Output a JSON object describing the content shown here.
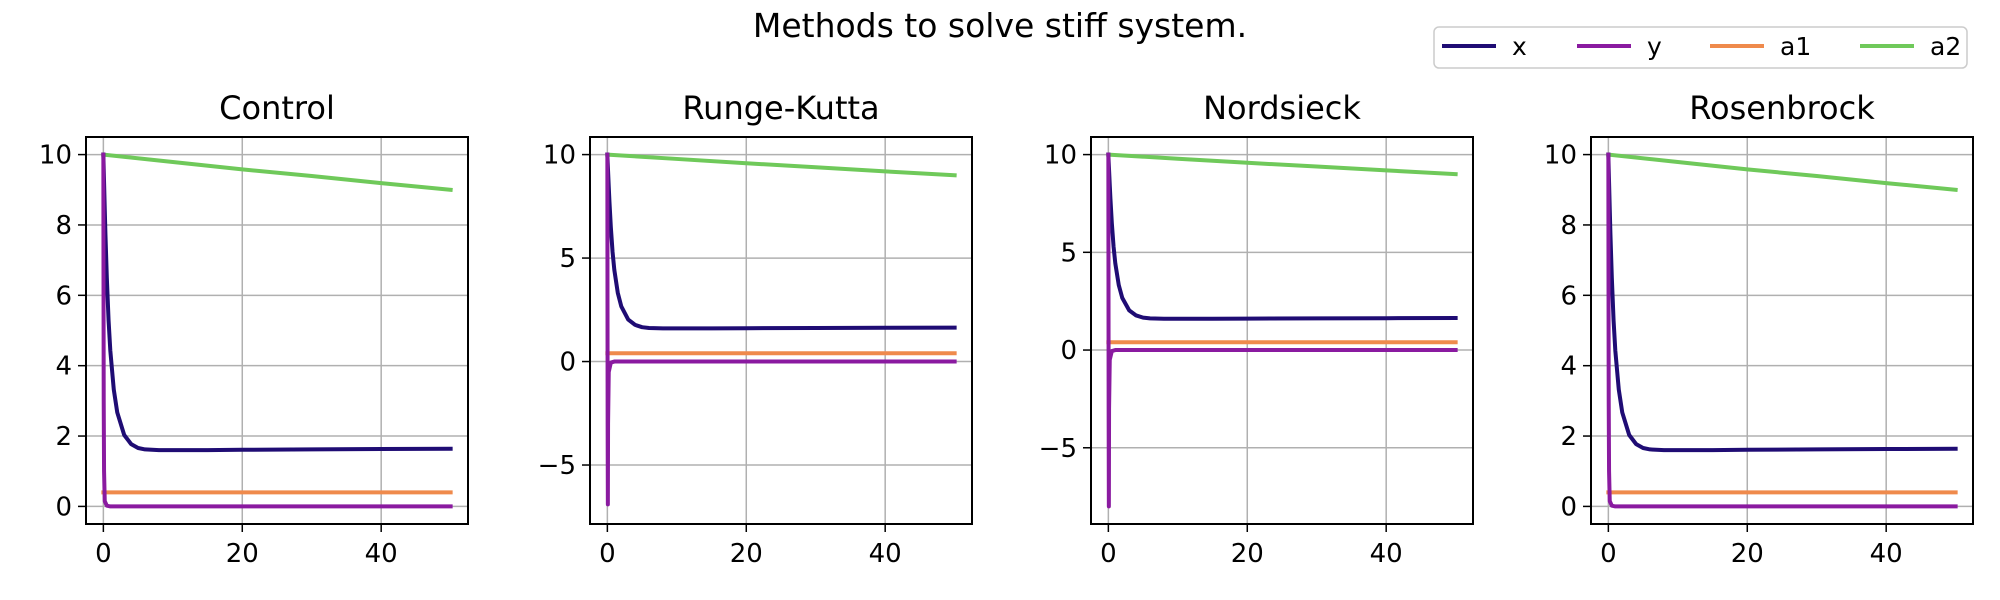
{
  "figure": {
    "title": "Methods to solve stiff system."
  },
  "legend": {
    "placement": "top-right",
    "entries": [
      {
        "label": "x",
        "color": "#1f0c74"
      },
      {
        "label": "y",
        "color": "#8a1aa0"
      },
      {
        "label": "a1",
        "color": "#ef8a4c"
      },
      {
        "label": "a2",
        "color": "#6fc95a"
      }
    ]
  },
  "chart_data": [
    {
      "type": "line",
      "title": "Control",
      "grid": true,
      "xlim": [
        -2.5,
        52.5
      ],
      "ylim": [
        -0.5,
        10.5
      ],
      "xticks": [
        0,
        20,
        40
      ],
      "yticks": [
        0,
        2,
        4,
        6,
        8,
        10
      ],
      "xtick_labels": [
        "0",
        "20",
        "40"
      ],
      "ytick_labels": [
        "0",
        "2",
        "4",
        "6",
        "8",
        "10"
      ],
      "series": [
        {
          "name": "a1",
          "color": "#ef8a4c",
          "x": [
            0,
            50
          ],
          "y": [
            0.4,
            0.4
          ]
        },
        {
          "name": "a2",
          "color": "#6fc95a",
          "x": [
            0,
            10,
            20,
            30,
            40,
            50
          ],
          "y": [
            10.0,
            9.79,
            9.58,
            9.39,
            9.19,
            9.0
          ]
        },
        {
          "name": "x",
          "color": "#1f0c74",
          "x": [
            0,
            0.05,
            0.1,
            0.2,
            0.3,
            0.5,
            0.75,
            1,
            1.5,
            2,
            3,
            4,
            5,
            6,
            8,
            10,
            15,
            20,
            30,
            40,
            50
          ],
          "y": [
            10.0,
            9.6,
            9.21,
            8.44,
            7.72,
            6.49,
            5.29,
            4.43,
            3.32,
            2.67,
            2.03,
            1.77,
            1.66,
            1.62,
            1.6,
            1.6,
            1.6,
            1.61,
            1.62,
            1.63,
            1.64
          ]
        },
        {
          "name": "y",
          "color": "#8a1aa0",
          "x": [
            0,
            0.02,
            0.05,
            0.1,
            0.2,
            0.5,
            1,
            50
          ],
          "y": [
            10.0,
            6.7,
            3.0,
            1.0,
            0.15,
            0.02,
            0.0,
            0.0
          ]
        }
      ]
    },
    {
      "type": "line",
      "title": "Runge-Kutta",
      "grid": true,
      "xlim": [
        -2.5,
        52.5
      ],
      "ylim": [
        -7.85,
        10.85
      ],
      "xticks": [
        0,
        20,
        40
      ],
      "yticks": [
        -5,
        0,
        5,
        10
      ],
      "xtick_labels": [
        "0",
        "20",
        "40"
      ],
      "ytick_labels": [
        "−5",
        "0",
        "5",
        "10"
      ],
      "series": [
        {
          "name": "a1",
          "color": "#ef8a4c",
          "x": [
            0,
            50
          ],
          "y": [
            0.4,
            0.4
          ]
        },
        {
          "name": "a2",
          "color": "#6fc95a",
          "x": [
            0,
            10,
            20,
            30,
            40,
            50
          ],
          "y": [
            10.0,
            9.79,
            9.58,
            9.39,
            9.19,
            9.0
          ]
        },
        {
          "name": "x",
          "color": "#1f0c74",
          "x": [
            0,
            0.05,
            0.1,
            0.2,
            0.3,
            0.5,
            0.75,
            1,
            1.5,
            2,
            3,
            4,
            5,
            6,
            8,
            10,
            15,
            20,
            30,
            40,
            50
          ],
          "y": [
            10.0,
            9.6,
            9.21,
            8.44,
            7.72,
            6.49,
            5.29,
            4.43,
            3.32,
            2.67,
            2.03,
            1.77,
            1.66,
            1.62,
            1.6,
            1.6,
            1.6,
            1.61,
            1.62,
            1.63,
            1.64
          ]
        },
        {
          "name": "y",
          "color": "#8a1aa0",
          "x": [
            0,
            0.02,
            0.04,
            0.07,
            0.1,
            0.2,
            0.5,
            1,
            50
          ],
          "y": [
            10.0,
            3.0,
            -3.0,
            -6.9,
            -3.0,
            -0.5,
            -0.05,
            0.0,
            0.0
          ]
        }
      ]
    },
    {
      "type": "line",
      "title": "Nordsieck",
      "grid": true,
      "xlim": [
        -2.5,
        52.5
      ],
      "ylim": [
        -8.9,
        10.9
      ],
      "xticks": [
        0,
        20,
        40
      ],
      "yticks": [
        -5,
        0,
        5,
        10
      ],
      "xtick_labels": [
        "0",
        "20",
        "40"
      ],
      "ytick_labels": [
        "−5",
        "0",
        "5",
        "10"
      ],
      "series": [
        {
          "name": "a1",
          "color": "#ef8a4c",
          "x": [
            0,
            50
          ],
          "y": [
            0.4,
            0.4
          ]
        },
        {
          "name": "a2",
          "color": "#6fc95a",
          "x": [
            0,
            10,
            20,
            30,
            40,
            50
          ],
          "y": [
            10.0,
            9.79,
            9.58,
            9.39,
            9.19,
            9.0
          ]
        },
        {
          "name": "x",
          "color": "#1f0c74",
          "x": [
            0,
            0.05,
            0.1,
            0.2,
            0.3,
            0.5,
            0.75,
            1,
            1.5,
            2,
            3,
            4,
            5,
            6,
            8,
            10,
            15,
            20,
            30,
            40,
            50
          ],
          "y": [
            10.0,
            9.6,
            9.21,
            8.44,
            7.72,
            6.49,
            5.29,
            4.43,
            3.32,
            2.67,
            2.03,
            1.77,
            1.66,
            1.62,
            1.6,
            1.6,
            1.6,
            1.61,
            1.62,
            1.63,
            1.64
          ]
        },
        {
          "name": "y",
          "color": "#8a1aa0",
          "x": [
            0,
            0.02,
            0.04,
            0.07,
            0.1,
            0.2,
            0.5,
            1,
            50
          ],
          "y": [
            10.0,
            3.0,
            -3.0,
            -8.0,
            -3.0,
            -0.5,
            -0.05,
            0.0,
            0.0
          ]
        }
      ]
    },
    {
      "type": "line",
      "title": "Rosenbrock",
      "grid": true,
      "xlim": [
        -2.5,
        52.5
      ],
      "ylim": [
        -0.5,
        10.5
      ],
      "xticks": [
        0,
        20,
        40
      ],
      "yticks": [
        0,
        2,
        4,
        6,
        8,
        10
      ],
      "xtick_labels": [
        "0",
        "20",
        "40"
      ],
      "ytick_labels": [
        "0",
        "2",
        "4",
        "6",
        "8",
        "10"
      ],
      "series": [
        {
          "name": "a1",
          "color": "#ef8a4c",
          "x": [
            0,
            50
          ],
          "y": [
            0.4,
            0.4
          ]
        },
        {
          "name": "a2",
          "color": "#6fc95a",
          "x": [
            0,
            10,
            20,
            30,
            40,
            50
          ],
          "y": [
            10.0,
            9.79,
            9.58,
            9.39,
            9.19,
            9.0
          ]
        },
        {
          "name": "x",
          "color": "#1f0c74",
          "x": [
            0,
            0.05,
            0.1,
            0.2,
            0.3,
            0.5,
            0.75,
            1,
            1.5,
            2,
            3,
            4,
            5,
            6,
            8,
            10,
            15,
            20,
            30,
            40,
            50
          ],
          "y": [
            10.0,
            9.6,
            9.21,
            8.44,
            7.72,
            6.49,
            5.29,
            4.43,
            3.32,
            2.67,
            2.03,
            1.77,
            1.66,
            1.62,
            1.6,
            1.6,
            1.6,
            1.61,
            1.62,
            1.63,
            1.64
          ]
        },
        {
          "name": "y",
          "color": "#8a1aa0",
          "x": [
            0,
            0.02,
            0.05,
            0.1,
            0.2,
            0.5,
            1,
            50
          ],
          "y": [
            10.0,
            6.7,
            3.0,
            1.0,
            0.15,
            0.02,
            0.0,
            0.0
          ]
        }
      ]
    }
  ]
}
